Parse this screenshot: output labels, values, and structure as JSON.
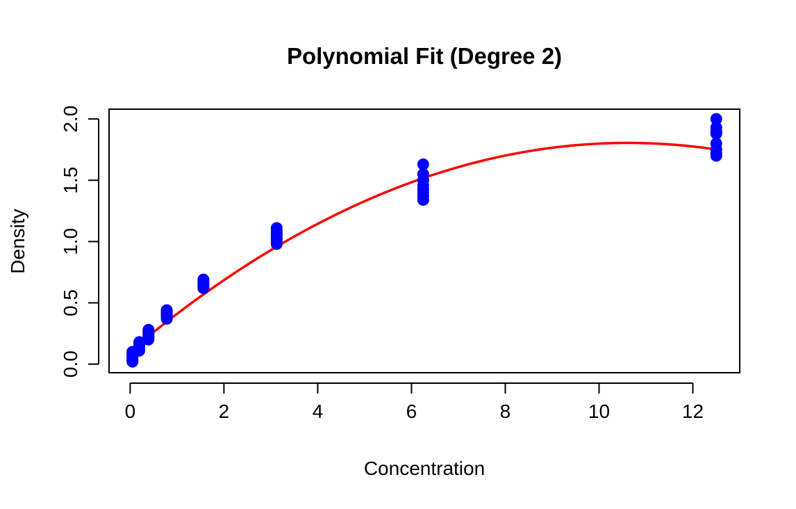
{
  "chart_data": {
    "type": "scatter",
    "title": "Polynomial Fit (Degree 2)",
    "xlabel": "Concentration",
    "ylabel": "Density",
    "xlim": [
      -0.45,
      13.0
    ],
    "ylim": [
      -0.07,
      2.08
    ],
    "x_ticks": [
      0,
      2,
      4,
      6,
      8,
      10,
      12
    ],
    "x_tick_labels": [
      "0",
      "2",
      "4",
      "6",
      "8",
      "10",
      "12"
    ],
    "y_ticks": [
      0.0,
      0.5,
      1.0,
      1.5,
      2.0
    ],
    "y_tick_labels": [
      "0.0",
      "0.5",
      "1.0",
      "1.5",
      "2.0"
    ],
    "grid": false,
    "series": [
      {
        "kind": "points",
        "color": "#0000ff",
        "x": [
          0.0488,
          0.0488,
          0.0488,
          0.0488,
          0.0488,
          0.0488,
          0.0488,
          0.0488,
          0.1953,
          0.1953,
          0.1953,
          0.1953,
          0.1953,
          0.1953,
          0.1953,
          0.1953,
          0.3906,
          0.3906,
          0.3906,
          0.3906,
          0.3906,
          0.3906,
          0.3906,
          0.3906,
          0.7812,
          0.7812,
          0.7812,
          0.7812,
          0.7812,
          0.7812,
          0.7812,
          0.7812,
          1.5625,
          1.5625,
          1.5625,
          1.5625,
          1.5625,
          1.5625,
          1.5625,
          1.5625,
          3.125,
          3.125,
          3.125,
          3.125,
          3.125,
          3.125,
          3.125,
          3.125,
          6.25,
          6.25,
          6.25,
          6.25,
          6.25,
          6.25,
          6.25,
          6.25,
          12.5,
          12.5,
          12.5,
          12.5,
          12.5,
          12.5,
          12.5,
          12.5
        ],
        "y": [
          0.02,
          0.03,
          0.04,
          0.05,
          0.06,
          0.07,
          0.09,
          0.1,
          0.11,
          0.12,
          0.13,
          0.14,
          0.15,
          0.16,
          0.17,
          0.18,
          0.2,
          0.21,
          0.22,
          0.23,
          0.24,
          0.25,
          0.26,
          0.28,
          0.37,
          0.38,
          0.39,
          0.4,
          0.41,
          0.42,
          0.43,
          0.44,
          0.62,
          0.63,
          0.64,
          0.65,
          0.66,
          0.67,
          0.68,
          0.69,
          0.98,
          1.0,
          1.02,
          1.03,
          1.05,
          1.07,
          1.09,
          1.11,
          1.34,
          1.37,
          1.4,
          1.43,
          1.46,
          1.5,
          1.55,
          1.63,
          1.7,
          1.72,
          1.75,
          1.8,
          1.88,
          1.9,
          1.93,
          2.0
        ]
      },
      {
        "kind": "curve",
        "color": "#ff0000",
        "x_range": [
          0.0488,
          12.5
        ],
        "coefficients": [
          0.105,
          0.3203,
          -0.01509
        ]
      }
    ]
  }
}
